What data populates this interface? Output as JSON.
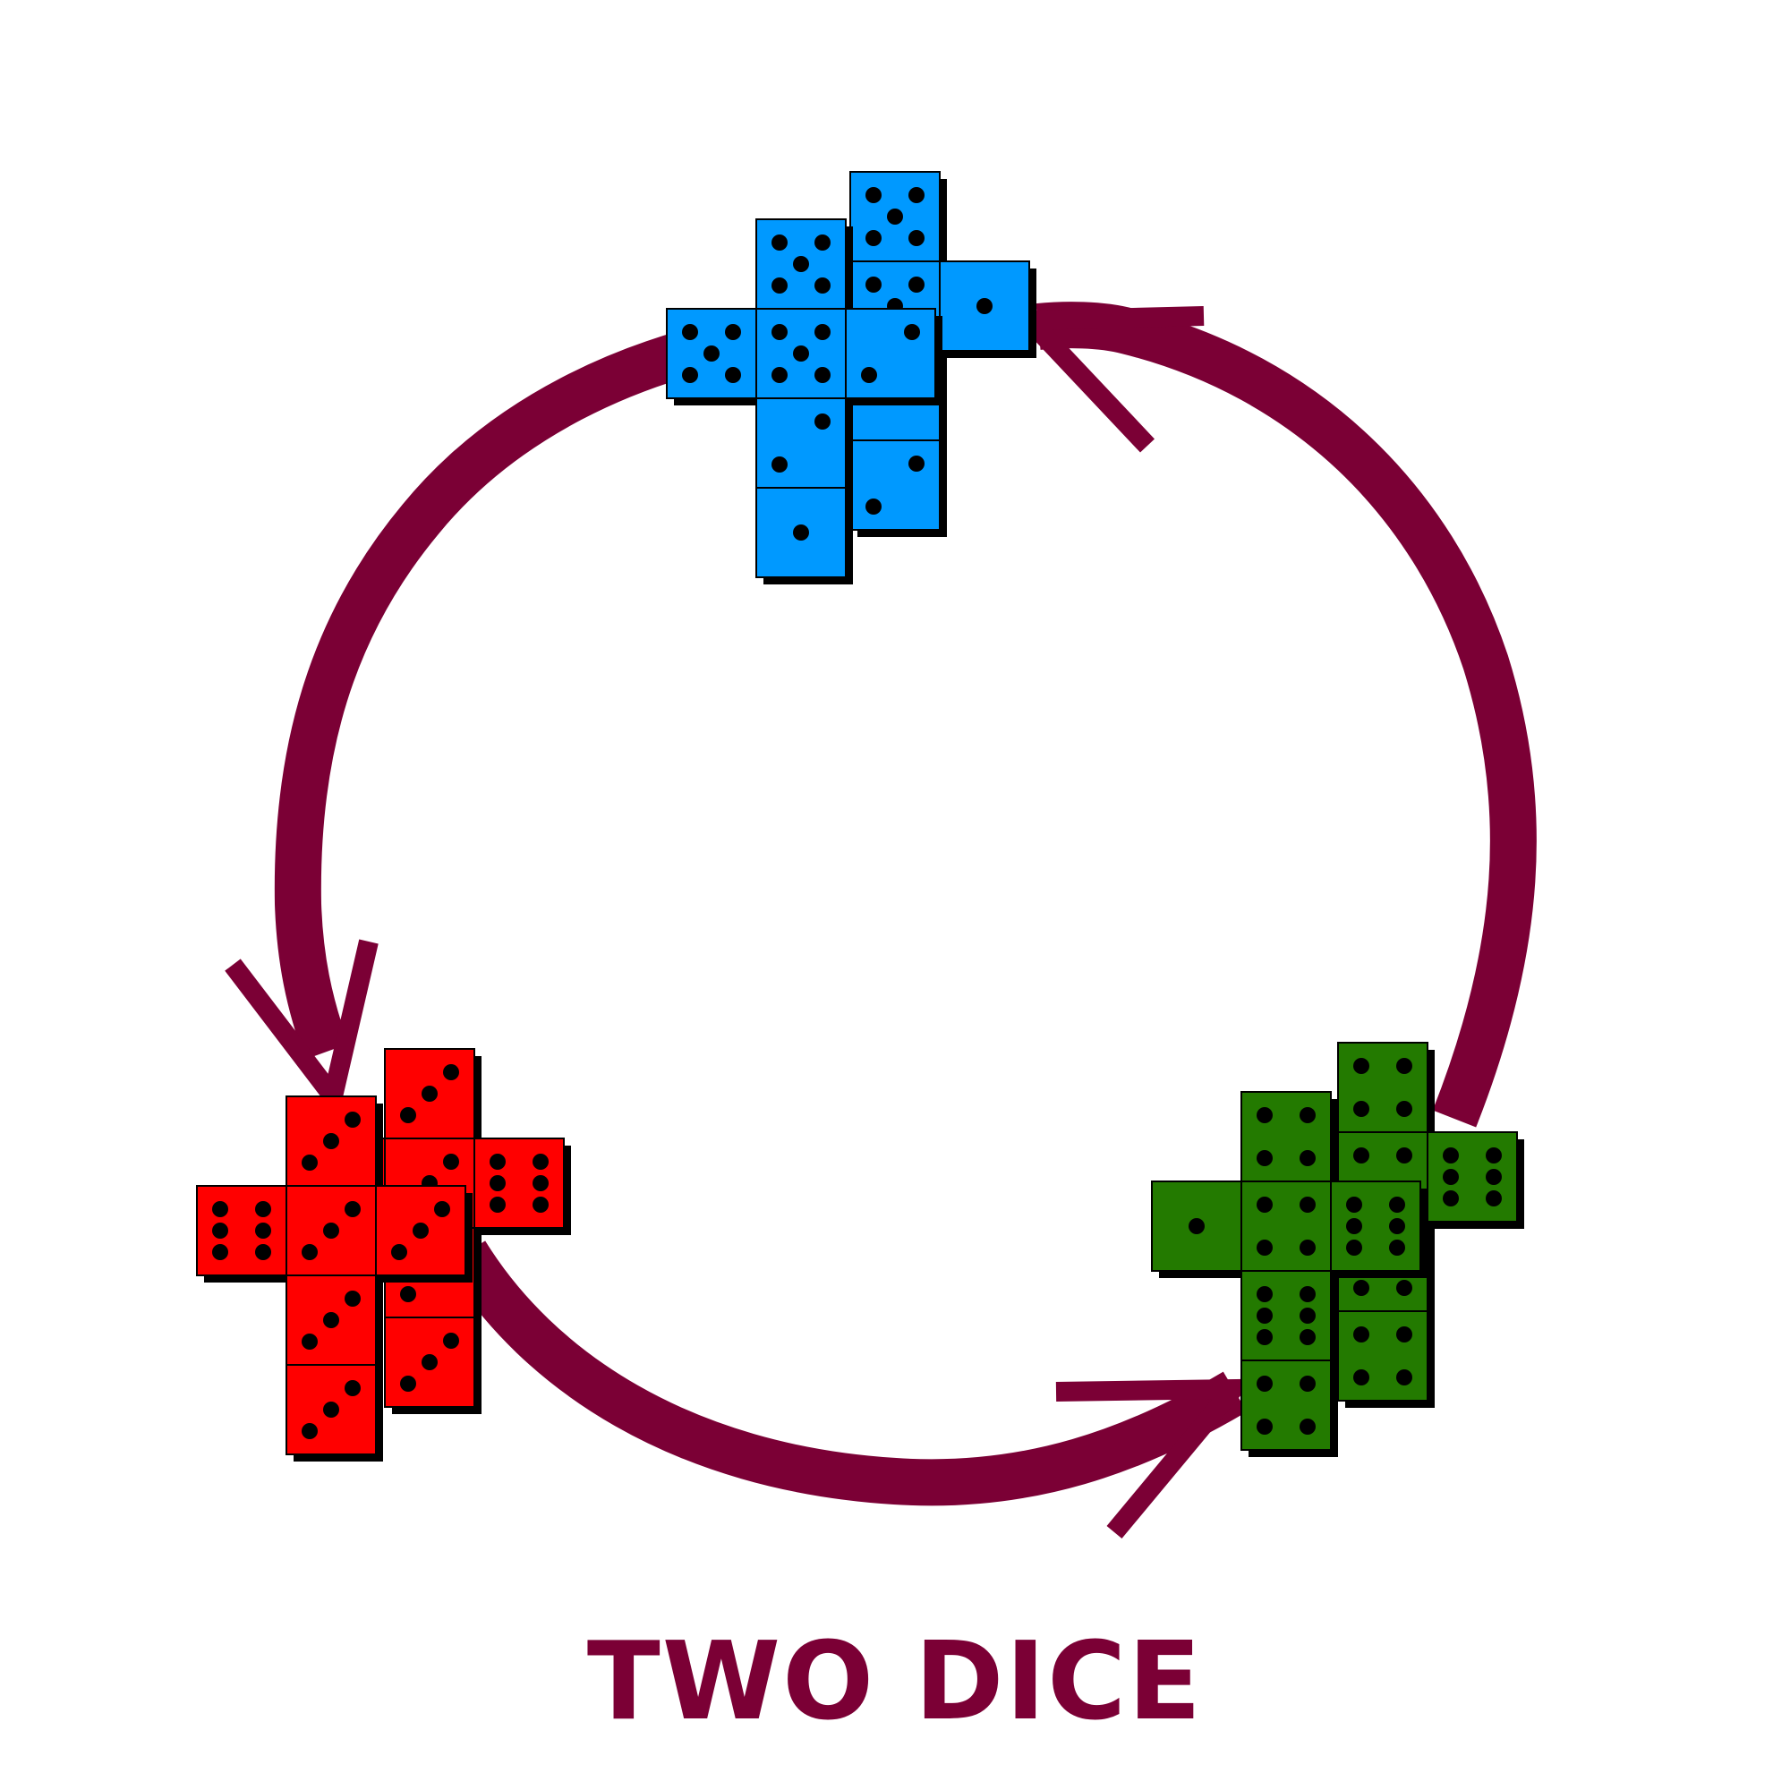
{
  "title": "TWO DICE",
  "colors": {
    "arrow": "#7b0035",
    "title": "#7b0035",
    "die_blue": "#0099ff",
    "die_red": "#ff0000",
    "die_green": "#237a00",
    "pip": "#000000"
  },
  "die_nets": [
    {
      "name": "blue-dice-net",
      "color_key": "die_blue",
      "back_die_faces": [
        5,
        5,
        5,
        1,
        1,
        2
      ],
      "front_die_faces": [
        5,
        5,
        5,
        2,
        2,
        1
      ]
    },
    {
      "name": "red-dice-net",
      "color_key": "die_red",
      "back_die_faces": [
        3,
        5,
        3,
        6,
        3,
        3
      ],
      "front_die_faces": [
        3,
        6,
        3,
        3,
        3,
        3
      ]
    },
    {
      "name": "green-dice-net",
      "color_key": "die_green",
      "back_die_faces": [
        4,
        5,
        4,
        6,
        4,
        4
      ],
      "front_die_faces": [
        4,
        1,
        4,
        6,
        6,
        4
      ]
    }
  ],
  "cycle": {
    "direction": "counter-clockwise",
    "arrows": [
      "blue-to-red",
      "red-to-green",
      "green-to-blue"
    ]
  }
}
